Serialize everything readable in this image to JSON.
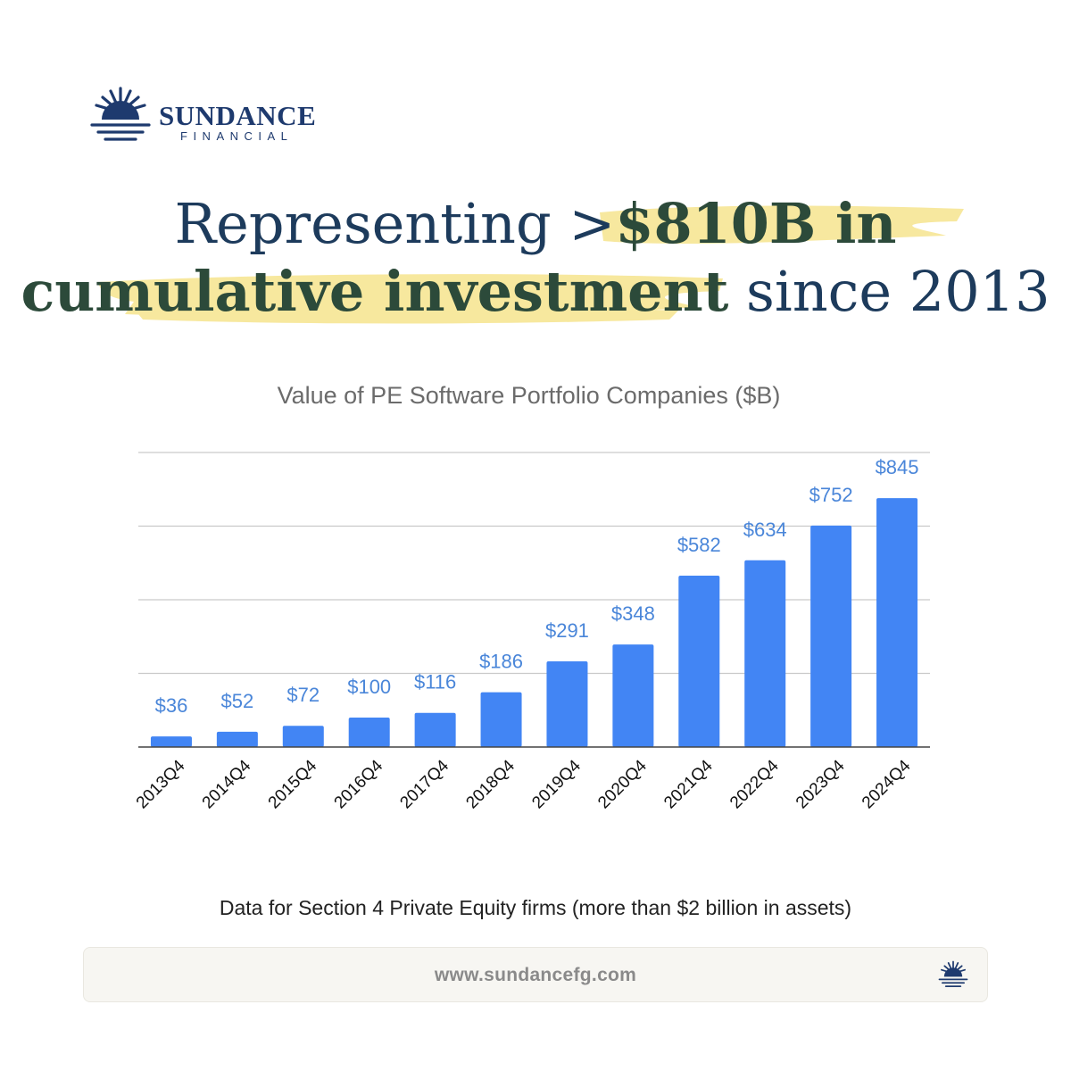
{
  "brand": {
    "name": "SUNDANCE",
    "sub": "FINANCIAL"
  },
  "headline": {
    "line1_plain": "Representing >",
    "line1_strong": "$810B in",
    "line2_strong": "cumulative investment",
    "line2_plain": " since 2013"
  },
  "colors": {
    "bar": "#4285f4",
    "label": "#4a86d9",
    "navy": "#1e3a6e",
    "highlight": "#f6e48e"
  },
  "chart_data": {
    "type": "bar",
    "title": "Value of PE Software Portfolio Companies ($B)",
    "categories": [
      "2013Q4",
      "2014Q4",
      "2015Q4",
      "2016Q4",
      "2017Q4",
      "2018Q4",
      "2019Q4",
      "2020Q4",
      "2021Q4",
      "2022Q4",
      "2023Q4",
      "2024Q4"
    ],
    "values": [
      36,
      52,
      72,
      100,
      116,
      186,
      291,
      348,
      582,
      634,
      752,
      845
    ],
    "labels": [
      "$36",
      "$52",
      "$72",
      "$100",
      "$116",
      "$186",
      "$291",
      "$348",
      "$582",
      "$634",
      "$752",
      "$845"
    ],
    "ylim": [
      0,
      1000
    ],
    "gridlines": [
      250,
      500,
      750,
      1000
    ],
    "xlabel": "",
    "ylabel": "",
    "legend": "none"
  },
  "footnote": "Data for Section 4 Private Equity firms (more than $2 billion in assets)",
  "footer": {
    "url": "www.sundancefg.com",
    "icon": "sun-logo-icon"
  }
}
